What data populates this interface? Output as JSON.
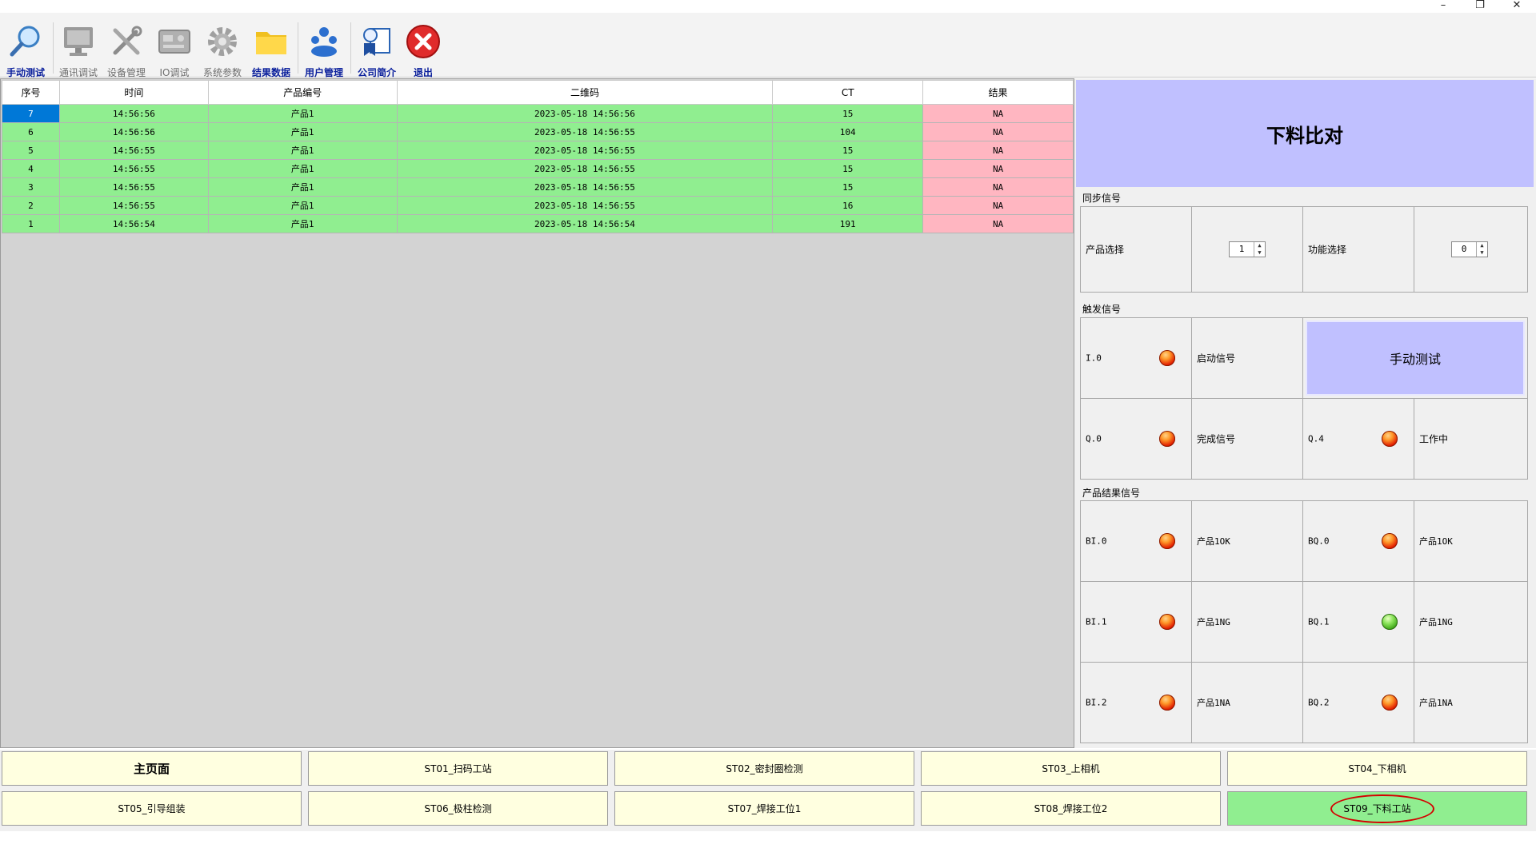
{
  "window": {
    "minimize_glyph": "–",
    "restore_glyph": "❐",
    "close_glyph": "✕"
  },
  "toolbar": {
    "items": [
      {
        "label": "手动测试",
        "icon": "magnifier-icon",
        "state": "active"
      },
      {
        "label": "通讯调试",
        "icon": "computer-icon",
        "state": "disabled"
      },
      {
        "label": "设备管理",
        "icon": "tools-icon",
        "state": "disabled"
      },
      {
        "label": "IO调试",
        "icon": "io-board-icon",
        "state": "disabled"
      },
      {
        "label": "系统参数",
        "icon": "gear-icon",
        "state": "disabled"
      },
      {
        "label": "结果数据",
        "icon": "folder-icon",
        "state": "active"
      },
      {
        "label": "用户管理",
        "icon": "users-icon",
        "state": "active"
      },
      {
        "label": "公司简介",
        "icon": "company-info-icon",
        "state": "active"
      },
      {
        "label": "退出",
        "icon": "exit-icon",
        "state": "active"
      }
    ]
  },
  "grid": {
    "columns": [
      "序号",
      "时间",
      "产品编号",
      "二维码",
      "CT",
      "结果"
    ],
    "rows": [
      [
        "7",
        "14:56:56",
        "产品1",
        "2023-05-18 14:56:56",
        "15",
        "NA"
      ],
      [
        "6",
        "14:56:56",
        "产品1",
        "2023-05-18 14:56:55",
        "104",
        "NA"
      ],
      [
        "5",
        "14:56:55",
        "产品1",
        "2023-05-18 14:56:55",
        "15",
        "NA"
      ],
      [
        "4",
        "14:56:55",
        "产品1",
        "2023-05-18 14:56:55",
        "15",
        "NA"
      ],
      [
        "3",
        "14:56:55",
        "产品1",
        "2023-05-18 14:56:55",
        "15",
        "NA"
      ],
      [
        "2",
        "14:56:55",
        "产品1",
        "2023-05-18 14:56:55",
        "16",
        "NA"
      ],
      [
        "1",
        "14:56:54",
        "产品1",
        "2023-05-18 14:56:54",
        "191",
        "NA"
      ]
    ]
  },
  "panel": {
    "title": "下料比对",
    "sync_group": {
      "label": "同步信号",
      "product_select_label": "产品选择",
      "product_select_value": "1",
      "function_select_label": "功能选择",
      "function_select_value": "0"
    },
    "trigger_group": {
      "label": "触发信号",
      "i0_label": "I.0",
      "i0_state": "red",
      "start_signal_label": "启动信号",
      "manual_test_button": "手动测试",
      "q0_label": "Q.0",
      "q0_state": "red",
      "done_signal_label": "完成信号",
      "q4_label": "Q.4",
      "q4_state": "red",
      "working_label": "工作中"
    },
    "result_group": {
      "label": "产品结果信号",
      "rows": [
        {
          "in_label": "BI.0",
          "in_state": "red",
          "in_text": "产品1OK",
          "out_label": "BQ.0",
          "out_state": "red",
          "out_text": "产品1OK"
        },
        {
          "in_label": "BI.1",
          "in_state": "red",
          "in_text": "产品1NG",
          "out_label": "BQ.1",
          "out_state": "green",
          "out_text": "产品1NG"
        },
        {
          "in_label": "BI.2",
          "in_state": "red",
          "in_text": "产品1NA",
          "out_label": "BQ.2",
          "out_state": "red",
          "out_text": "产品1NA"
        }
      ]
    }
  },
  "nav": {
    "row1": [
      "主页面",
      "ST01_扫码工站",
      "ST02_密封圈检测",
      "ST03_上相机",
      "ST04_下相机"
    ],
    "row2": [
      "ST05_引导组装",
      "ST06_极柱检测",
      "ST07_焊接工位1",
      "ST08_焊接工位2",
      "ST09_下料工站"
    ],
    "active": "ST09_下料工站"
  },
  "colors": {
    "row_ok": "#90ee90",
    "result_na": "#ffb6c1",
    "selected": "#0078d7",
    "title_bg": "#c0c0ff",
    "nav_bg": "#ffffe0",
    "nav_active": "#90ee90",
    "annotation": "#d40000"
  }
}
